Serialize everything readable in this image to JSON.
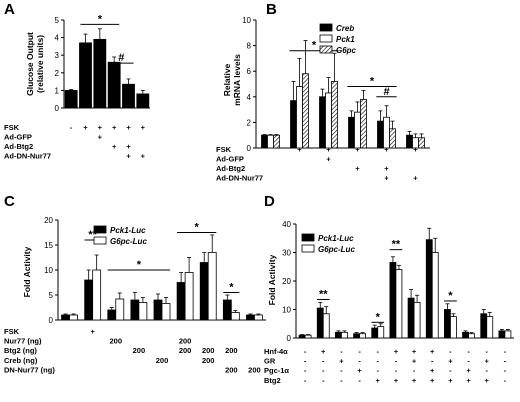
{
  "panels": {
    "A": {
      "label": "A"
    },
    "B": {
      "label": "B"
    },
    "C": {
      "label": "C"
    },
    "D": {
      "label": "D"
    }
  },
  "chart_data": [
    {
      "panel": "A",
      "type": "bar",
      "ylabel": "Glucose Output\n(relative units)",
      "ylim": [
        0,
        5
      ],
      "yticks": [
        "0",
        "1",
        "2",
        "3",
        "4",
        "5"
      ],
      "series": [
        {
          "values": [
            1.0,
            3.7,
            3.9,
            2.6,
            1.35,
            0.8
          ],
          "errors": [
            0.05,
            0.5,
            0.6,
            0.3,
            0.3,
            0.2
          ]
        }
      ],
      "conditions": [
        {
          "label": "FSK",
          "marks": [
            "-",
            "+",
            "+",
            "+",
            "+",
            "+"
          ]
        },
        {
          "label": "Ad-GFP",
          "marks": [
            "",
            "",
            "+",
            "",
            "",
            ""
          ]
        },
        {
          "label": "Ad-Btg2",
          "marks": [
            "",
            "",
            "",
            "+",
            "+",
            ""
          ]
        },
        {
          "label": "Ad-DN-Nur77",
          "marks": [
            "",
            "",
            "",
            "",
            "+",
            "+"
          ]
        }
      ],
      "significance": [
        "*",
        "#"
      ],
      "color": "#000000"
    },
    {
      "panel": "B",
      "type": "bar",
      "ylabel": "Relative\nmRNA levels",
      "ylim": [
        0,
        10
      ],
      "yticks": [
        "0",
        "2",
        "4",
        "6",
        "8",
        "10"
      ],
      "series": [
        {
          "name": "Creb",
          "values": [
            1.0,
            3.7,
            4.0,
            2.4,
            2.1,
            1.0
          ],
          "errors": [
            0.05,
            1.5,
            0.6,
            0.5,
            0.8,
            0.3
          ]
        },
        {
          "name": "Pck1",
          "values": [
            1.0,
            4.8,
            4.3,
            2.8,
            2.4,
            0.8
          ],
          "errors": [
            0.05,
            2.2,
            1.2,
            0.8,
            0.9,
            0.3
          ]
        },
        {
          "name": "G6pc",
          "values": [
            1.0,
            5.8,
            5.2,
            3.8,
            1.5,
            0.8
          ],
          "errors": [
            0.05,
            2.6,
            2.2,
            0.7,
            0.6,
            0.3
          ]
        }
      ],
      "conditions": [
        {
          "label": "FSK",
          "marks": [
            "",
            "+",
            "+",
            "+",
            "+",
            "+"
          ]
        },
        {
          "label": "Ad-GFP",
          "marks": [
            "",
            "",
            "+",
            "",
            "",
            ""
          ]
        },
        {
          "label": "Ad-Btg2",
          "marks": [
            "",
            "",
            "",
            "+",
            "+",
            ""
          ]
        },
        {
          "label": "Ad-DN-Nur77",
          "marks": [
            "",
            "",
            "",
            "",
            "+",
            "+"
          ]
        }
      ],
      "significance": [
        "*",
        "*",
        "#"
      ]
    },
    {
      "panel": "C",
      "type": "bar",
      "ylabel": "Fold Activity",
      "ylim": [
        0,
        20
      ],
      "yticks": [
        "0",
        "5",
        "10",
        "15",
        "20"
      ],
      "series": [
        {
          "name": "Pck1-Luc",
          "values": [
            1.0,
            8.0,
            2.0,
            4.0,
            4.0,
            7.5,
            11.5,
            4.0,
            1.0
          ],
          "errors": [
            0.2,
            2.0,
            0.5,
            1.5,
            1.2,
            2.0,
            2.0,
            1.0,
            0.2
          ]
        },
        {
          "name": "G6pc-Luc",
          "values": [
            1.0,
            10.0,
            4.2,
            3.5,
            3.3,
            9.5,
            13.5,
            1.5,
            1.0
          ],
          "errors": [
            0.2,
            3.0,
            1.2,
            1.0,
            1.2,
            3.0,
            3.5,
            0.4,
            0.2
          ]
        }
      ],
      "conditions": [
        {
          "label": "FSK",
          "marks": [
            "",
            "+",
            "",
            "",
            "",
            "",
            "",
            "",
            ""
          ]
        },
        {
          "label": "Nur77 (ng)",
          "marks": [
            "",
            "",
            "200",
            "",
            "",
            "200",
            "",
            "",
            ""
          ]
        },
        {
          "label": "Btg2 (ng)",
          "marks": [
            "",
            "",
            "",
            "200",
            "",
            "200",
            "200",
            "200",
            ""
          ]
        },
        {
          "label": "Creb (ng)",
          "marks": [
            "",
            "",
            "",
            "",
            "200",
            "",
            "200",
            "",
            ""
          ]
        },
        {
          "label": "DN-Nur77 (ng)",
          "marks": [
            "",
            "",
            "",
            "",
            "",
            "",
            "",
            "200",
            "200"
          ]
        }
      ],
      "significance": [
        "**",
        "*",
        "*",
        "*"
      ]
    },
    {
      "panel": "D",
      "type": "bar",
      "ylabel": "Fold Activity",
      "ylim": [
        0,
        40
      ],
      "yticks": [
        "0",
        "10",
        "20",
        "30",
        "40"
      ],
      "series": [
        {
          "name": "Pck1-Luc",
          "values": [
            1.0,
            10.5,
            2.0,
            1.5,
            3.5,
            26.5,
            14.0,
            34.5,
            10.0,
            2.0,
            8.5,
            2.5
          ],
          "errors": [
            0.2,
            2.0,
            0.5,
            0.4,
            1.0,
            2.0,
            3.0,
            4.0,
            2.0,
            0.5,
            1.5,
            0.5
          ]
        },
        {
          "name": "G6pc-Luc",
          "values": [
            1.0,
            8.5,
            2.0,
            1.5,
            4.0,
            24.0,
            12.5,
            30.0,
            7.5,
            1.5,
            7.5,
            2.5
          ],
          "errors": [
            0.2,
            2.5,
            0.5,
            0.4,
            1.0,
            1.5,
            2.5,
            5.0,
            1.0,
            0.4,
            1.5,
            0.5
          ]
        }
      ],
      "conditions": [
        {
          "label": "Hnf-4α",
          "marks": [
            "-",
            "+",
            "-",
            "-",
            "-",
            "+",
            "+",
            "+",
            "-",
            "-",
            "-",
            "-"
          ]
        },
        {
          "label": "GR",
          "marks": [
            "-",
            "-",
            "+",
            "-",
            "-",
            "-",
            "+",
            "-",
            "+",
            "-",
            "+",
            "-"
          ]
        },
        {
          "label": "Pgc-1α",
          "marks": [
            "-",
            "-",
            "-",
            "+",
            "-",
            "-",
            "-",
            "+",
            "-",
            "+",
            "-",
            "-"
          ]
        },
        {
          "label": "Btg2",
          "marks": [
            "-",
            "-",
            "-",
            "-",
            "+",
            "+",
            "+",
            "+",
            "+",
            "+",
            "+",
            "-"
          ]
        }
      ],
      "significance": [
        "**",
        "*",
        "**",
        "*"
      ]
    }
  ]
}
